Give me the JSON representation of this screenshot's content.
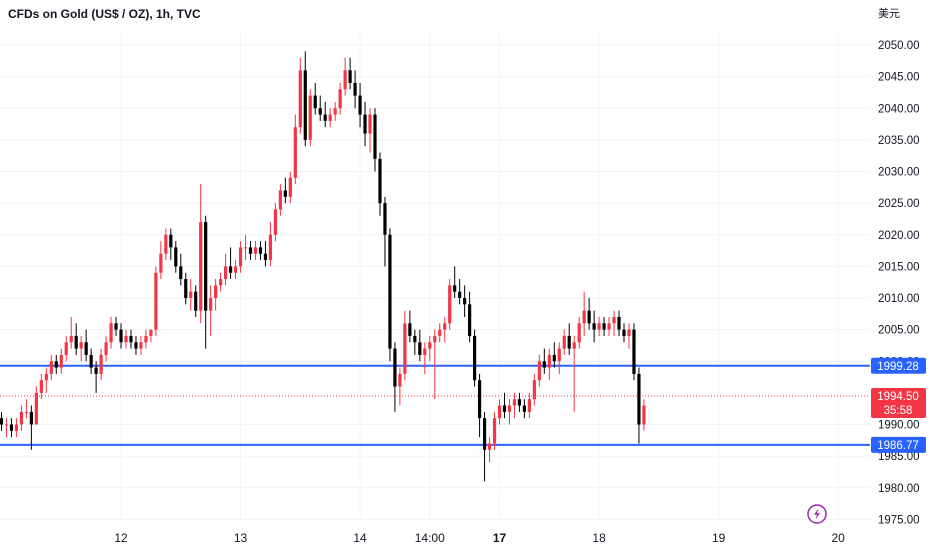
{
  "header": {
    "title": "CFDs on Gold (US$ / OZ), 1h, TVC",
    "currency": "美元"
  },
  "colors": {
    "up": "#f23645",
    "down": "#000000",
    "hline": "#2962ff",
    "last_price_line": "#f23645",
    "grid": "#f0f3fa",
    "axis_text": "#131722",
    "lightning": "#9c27b0"
  },
  "icons": {
    "replay": "lightning-icon"
  },
  "chart_data": {
    "type": "candlestick",
    "symbol": "CFDs on Gold (US$ / OZ)",
    "interval": "1h",
    "source": "TVC",
    "ylim": [
      1974,
      2053
    ],
    "y_ticks": [
      "2050.00",
      "2045.00",
      "2040.00",
      "2035.00",
      "2030.00",
      "2025.00",
      "2020.00",
      "2015.00",
      "2010.00",
      "2005.00",
      "2000.00",
      "1995.00",
      "1990.00",
      "1985.00",
      "1980.00",
      "1975.00"
    ],
    "x_ticks": [
      {
        "label": "12",
        "bar": 24,
        "bold": false
      },
      {
        "label": "13",
        "bar": 48,
        "bold": false
      },
      {
        "label": "14",
        "bar": 72,
        "bold": false
      },
      {
        "label": "14:00",
        "bar": 86,
        "bold": false
      },
      {
        "label": "17",
        "bar": 100,
        "bold": true
      },
      {
        "label": "18",
        "bar": 120,
        "bold": false
      },
      {
        "label": "19",
        "bar": 144,
        "bold": false
      },
      {
        "label": "20",
        "bar": 168,
        "bold": false
      }
    ],
    "horizontal_lines": [
      {
        "price": 1999.28,
        "label": "1999.28"
      },
      {
        "price": 1986.77,
        "label": "1986.77"
      }
    ],
    "last_price": {
      "price": 1994.5,
      "label": "1994.50",
      "countdown": "35:58"
    },
    "candles": [
      [
        1991,
        1992,
        1989,
        1990
      ],
      [
        1990,
        1991,
        1988,
        1990
      ],
      [
        1990,
        1991,
        1988,
        1989
      ],
      [
        1989,
        1991,
        1988,
        1990
      ],
      [
        1990,
        1993,
        1989,
        1992
      ],
      [
        1992,
        1994,
        1991,
        1992
      ],
      [
        1992,
        1993,
        1986,
        1990
      ],
      [
        1990,
        1996,
        1990,
        1995
      ],
      [
        1995,
        1998,
        1994,
        1997
      ],
      [
        1997,
        1999,
        1995,
        1998
      ],
      [
        1998,
        2001,
        1997,
        2000
      ],
      [
        2000,
        2001,
        1998,
        1999
      ],
      [
        1999,
        2002,
        1998,
        2001
      ],
      [
        2001,
        2004,
        2000,
        2003
      ],
      [
        2003,
        2007,
        2002,
        2004
      ],
      [
        2004,
        2006,
        2001,
        2002
      ],
      [
        2002,
        2004,
        2000,
        2003
      ],
      [
        2003,
        2005,
        2000,
        2001
      ],
      [
        2001,
        2002,
        1998,
        1999
      ],
      [
        1999,
        2000,
        1995,
        1998
      ],
      [
        1998,
        2002,
        1997,
        2001
      ],
      [
        2001,
        2004,
        2000,
        2003
      ],
      [
        2003,
        2007,
        2002,
        2006
      ],
      [
        2006,
        2007,
        2004,
        2005
      ],
      [
        2005,
        2006,
        2002,
        2003
      ],
      [
        2003,
        2005,
        2002,
        2004
      ],
      [
        2004,
        2005,
        2002,
        2003
      ],
      [
        2003,
        2004,
        2001,
        2002
      ],
      [
        2002,
        2004,
        2001,
        2003
      ],
      [
        2003,
        2005,
        2002,
        2004
      ],
      [
        2004,
        2005,
        2003,
        2005
      ],
      [
        2005,
        2015,
        2004,
        2014
      ],
      [
        2014,
        2019,
        2013,
        2017
      ],
      [
        2017,
        2021,
        2016,
        2020
      ],
      [
        2020,
        2021,
        2016,
        2018
      ],
      [
        2018,
        2019,
        2014,
        2015
      ],
      [
        2015,
        2017,
        2012,
        2013
      ],
      [
        2013,
        2014,
        2009,
        2010
      ],
      [
        2010,
        2013,
        2008,
        2011
      ],
      [
        2011,
        2012,
        2007,
        2008
      ],
      [
        2008,
        2028,
        2006,
        2022
      ],
      [
        2022,
        2023,
        2002,
        2008
      ],
      [
        2008,
        2012,
        2004,
        2010
      ],
      [
        2010,
        2013,
        2008,
        2012
      ],
      [
        2012,
        2014,
        2011,
        2013
      ],
      [
        2013,
        2017,
        2012,
        2015
      ],
      [
        2015,
        2018,
        2013,
        2014
      ],
      [
        2014,
        2016,
        2013,
        2015
      ],
      [
        2015,
        2019,
        2014,
        2018
      ],
      [
        2018,
        2020,
        2016,
        2018
      ],
      [
        2018,
        2019,
        2016,
        2017
      ],
      [
        2017,
        2019,
        2016,
        2018
      ],
      [
        2018,
        2019,
        2016,
        2017
      ],
      [
        2017,
        2019,
        2015,
        2016
      ],
      [
        2016,
        2022,
        2015,
        2020
      ],
      [
        2020,
        2025,
        2019,
        2024
      ],
      [
        2024,
        2028,
        2023,
        2027
      ],
      [
        2027,
        2029,
        2025,
        2026
      ],
      [
        2026,
        2030,
        2025,
        2029
      ],
      [
        2029,
        2039,
        2028,
        2037
      ],
      [
        2037,
        2048,
        2036,
        2046
      ],
      [
        2046,
        2049,
        2034,
        2035
      ],
      [
        2035,
        2043,
        2034,
        2042
      ],
      [
        2042,
        2044,
        2039,
        2040
      ],
      [
        2040,
        2042,
        2038,
        2039
      ],
      [
        2039,
        2041,
        2037,
        2038
      ],
      [
        2038,
        2040,
        2037,
        2039
      ],
      [
        2039,
        2041,
        2038,
        2040
      ],
      [
        2040,
        2044,
        2039,
        2043
      ],
      [
        2043,
        2048,
        2042,
        2046
      ],
      [
        2046,
        2048,
        2043,
        2044
      ],
      [
        2044,
        2046,
        2040,
        2042
      ],
      [
        2042,
        2044,
        2037,
        2039
      ],
      [
        2039,
        2041,
        2034,
        2036
      ],
      [
        2036,
        2040,
        2033,
        2039
      ],
      [
        2039,
        2040,
        2030,
        2032
      ],
      [
        2032,
        2033,
        2023,
        2025
      ],
      [
        2025,
        2026,
        2015,
        2020
      ],
      [
        2020,
        2021,
        2000,
        2002
      ],
      [
        2002,
        2003,
        1992,
        1996
      ],
      [
        1996,
        1999,
        1993,
        1998
      ],
      [
        1998,
        2008,
        1997,
        2006
      ],
      [
        2006,
        2008,
        2003,
        2004
      ],
      [
        2004,
        2005,
        2001,
        2003
      ],
      [
        2003,
        2005,
        2000,
        2001
      ],
      [
        2001,
        2003,
        1998,
        2002
      ],
      [
        2002,
        2004,
        2000,
        2003
      ],
      [
        2003,
        2005,
        1994,
        2004
      ],
      [
        2004,
        2006,
        2003,
        2005
      ],
      [
        2005,
        2007,
        2003,
        2006
      ],
      [
        2006,
        2013,
        2005,
        2012
      ],
      [
        2012,
        2015,
        2010,
        2011
      ],
      [
        2011,
        2013,
        2009,
        2010
      ],
      [
        2010,
        2012,
        2007,
        2009
      ],
      [
        2009,
        2011,
        2003,
        2004
      ],
      [
        2004,
        2005,
        1996,
        1997
      ],
      [
        1997,
        1998,
        1988,
        1991
      ],
      [
        1991,
        1992,
        1981,
        1986
      ],
      [
        1986,
        1988,
        1984,
        1987
      ],
      [
        1987,
        1992,
        1986,
        1991
      ],
      [
        1991,
        1994,
        1990,
        1993
      ],
      [
        1993,
        1995,
        1991,
        1992
      ],
      [
        1992,
        1994,
        1990,
        1993
      ],
      [
        1993,
        1995,
        1991,
        1994
      ],
      [
        1994,
        1995,
        1992,
        1993
      ],
      [
        1993,
        1994,
        1991,
        1992
      ],
      [
        1992,
        1995,
        1991,
        1994
      ],
      [
        1994,
        1998,
        1993,
        1997
      ],
      [
        1997,
        2001,
        1996,
        2000
      ],
      [
        2000,
        2002,
        1998,
        1999
      ],
      [
        1999,
        2002,
        1997,
        2001
      ],
      [
        2001,
        2003,
        1999,
        2000
      ],
      [
        2000,
        2003,
        1998,
        2002
      ],
      [
        2002,
        2005,
        2001,
        2004
      ],
      [
        2004,
        2006,
        2001,
        2002
      ],
      [
        2002,
        2004,
        1992,
        2003
      ],
      [
        2003,
        2007,
        2002,
        2006
      ],
      [
        2006,
        2011,
        2004,
        2008
      ],
      [
        2008,
        2010,
        2005,
        2006
      ],
      [
        2006,
        2008,
        2003,
        2005
      ],
      [
        2005,
        2007,
        2004,
        2006
      ],
      [
        2006,
        2007,
        2004,
        2005
      ],
      [
        2005,
        2007,
        2004,
        2006
      ],
      [
        2006,
        2008,
        2004,
        2007
      ],
      [
        2007,
        2008,
        2004,
        2005
      ],
      [
        2005,
        2006,
        2003,
        2004
      ],
      [
        2004,
        2006,
        2002,
        2005
      ],
      [
        2005,
        2006,
        1997,
        1998
      ],
      [
        1998,
        1999,
        1987,
        1990
      ],
      [
        1990,
        1994,
        1989,
        1993
      ]
    ]
  }
}
